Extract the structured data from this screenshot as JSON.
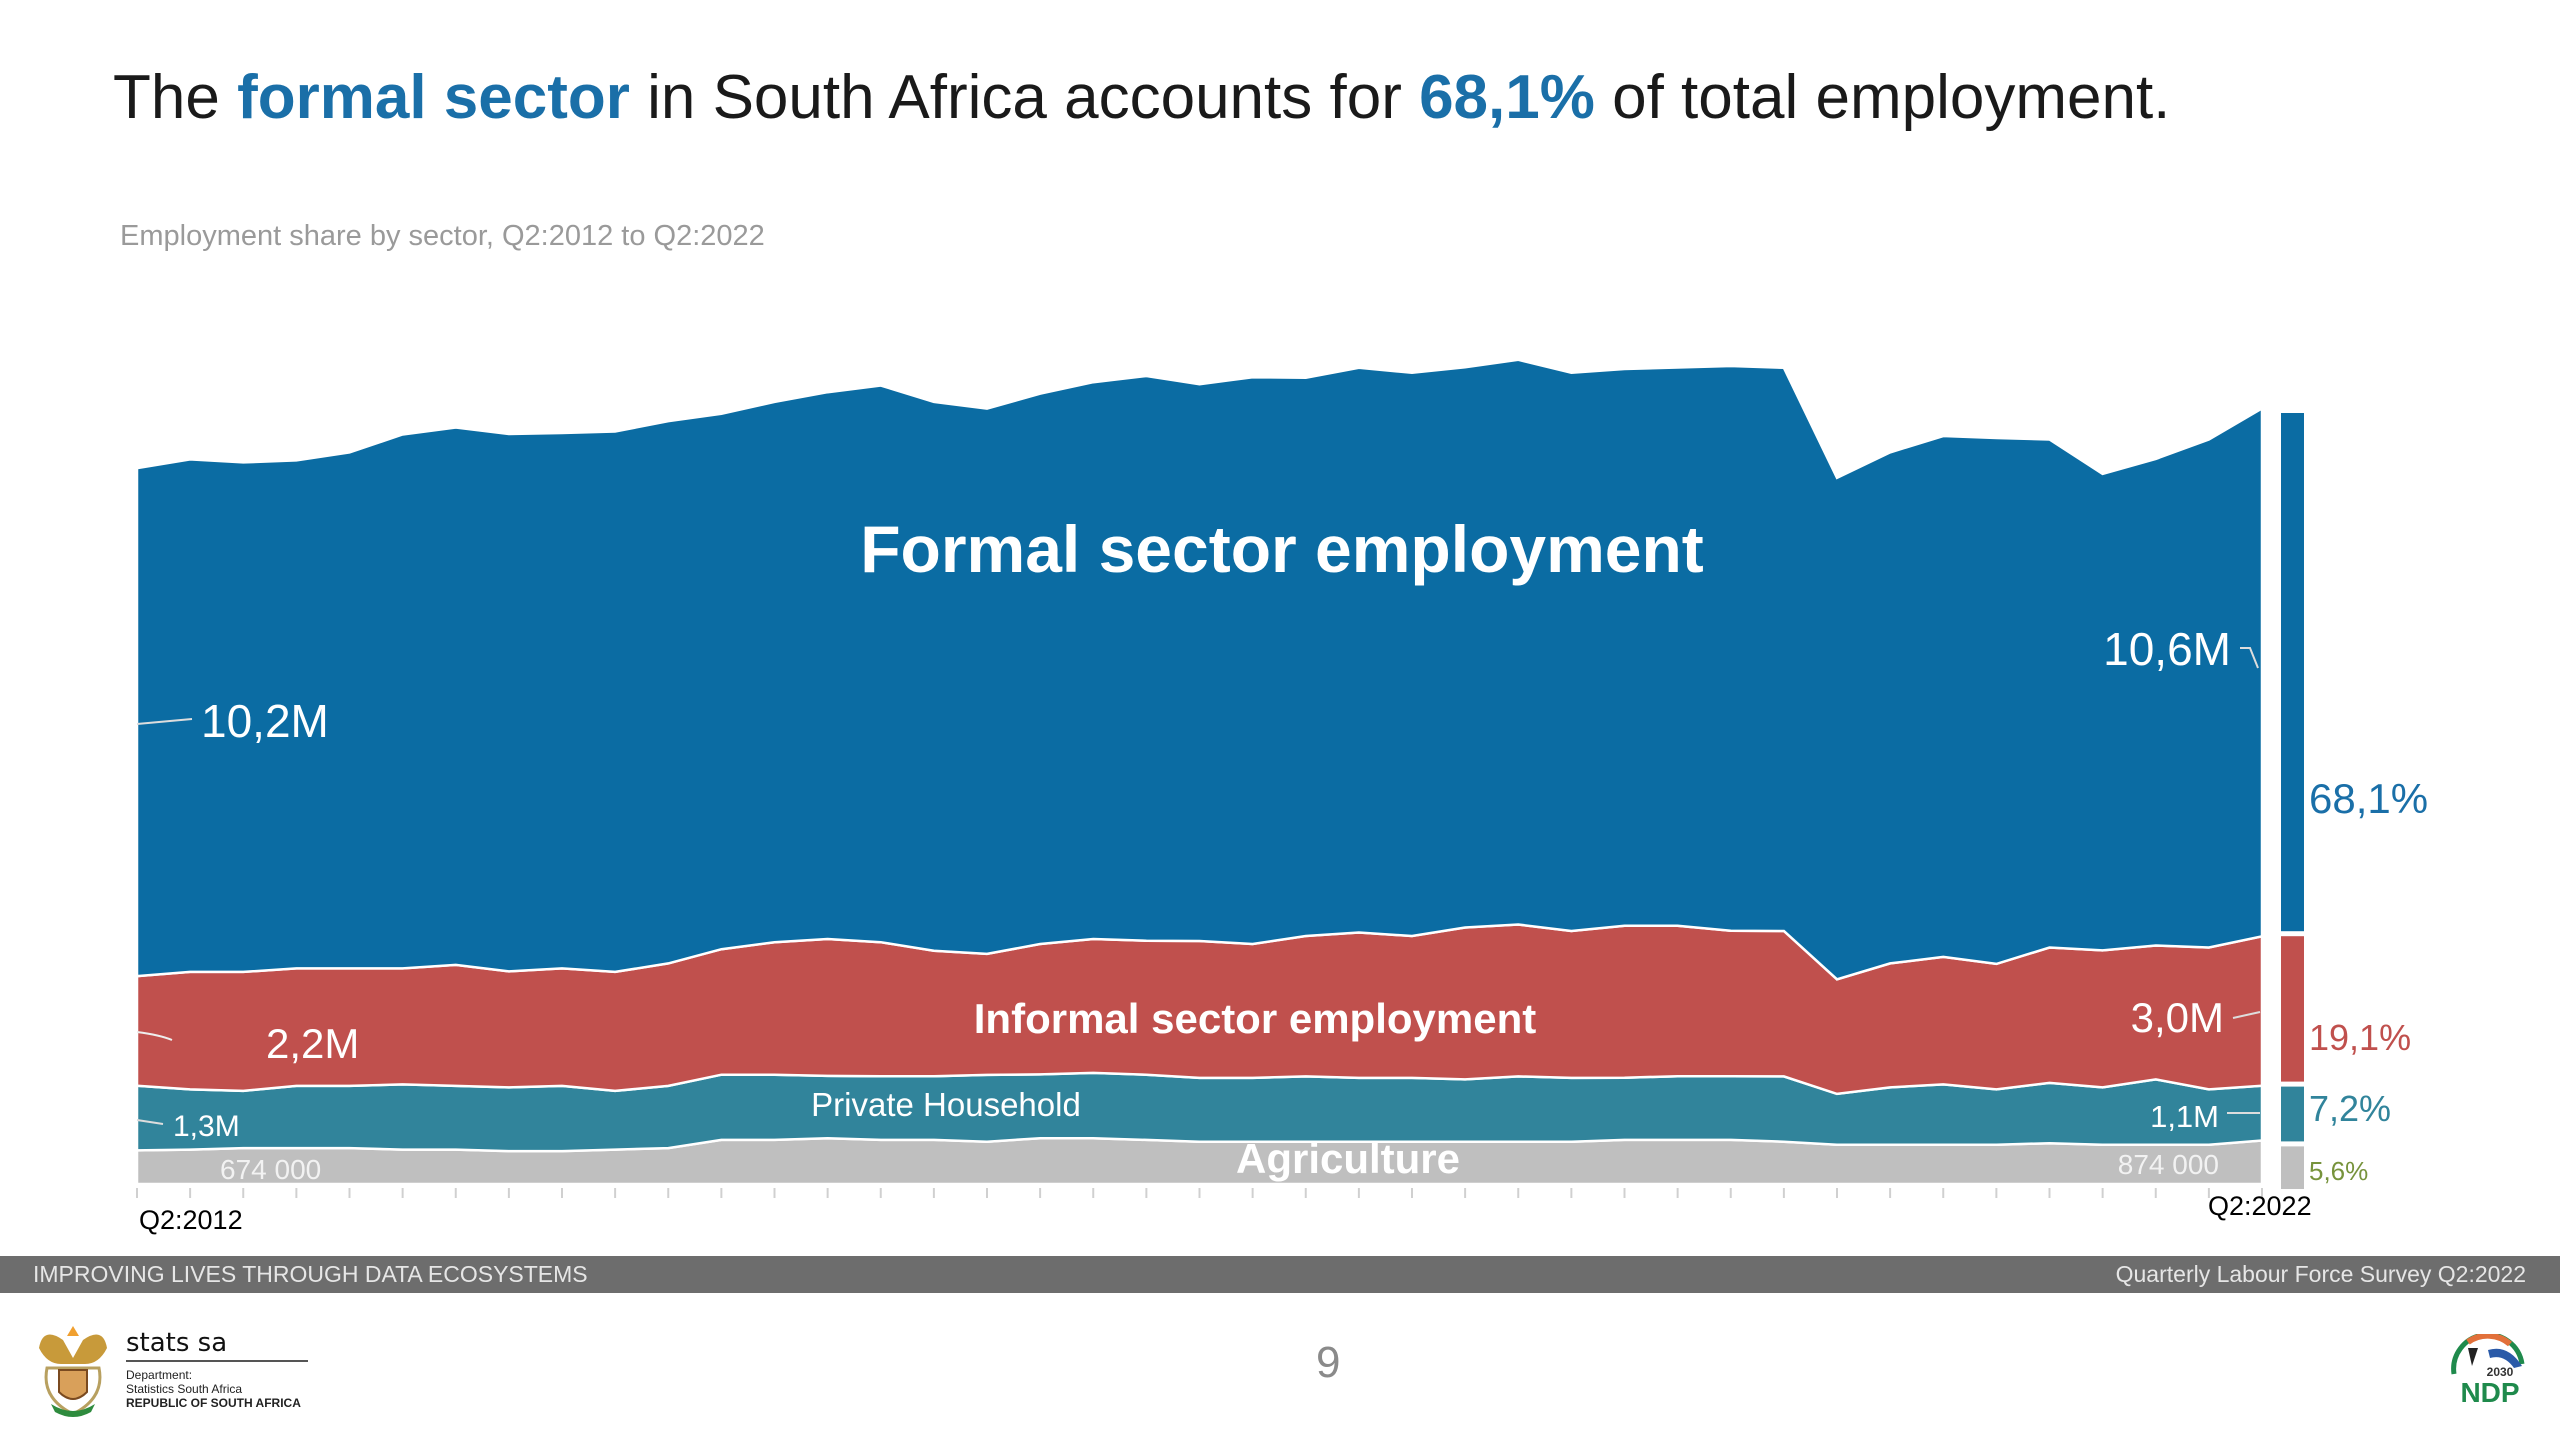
{
  "title": {
    "pre": "The ",
    "hl1": "formal sector",
    "mid": " in South Africa accounts for ",
    "hl2": "68,1%",
    "post": " of total employment."
  },
  "subtitle": "Employment share by sector, Q2:2012 to Q2:2022",
  "chart_data": {
    "type": "area",
    "stacked": true,
    "title": "Employment share by sector, Q2:2012 to Q2:2022",
    "x_start_label": "Q2:2012",
    "x_end_label": "Q2:2022",
    "unit": "thousands",
    "colors": {
      "formal": "#0b6ca3",
      "informal": "#c0504d",
      "household": "#31849b",
      "agriculture": "#bfbfbf"
    },
    "series": [
      {
        "key": "agriculture",
        "name": "Agriculture",
        "values": [
          674,
          690,
          720,
          720,
          720,
          690,
          690,
          660,
          660,
          690,
          720,
          885,
          885,
          920,
          885,
          885,
          850,
          920,
          920,
          885,
          850,
          850,
          850,
          850,
          850,
          850,
          850,
          850,
          885,
          885,
          885,
          850,
          790,
          790,
          790,
          790,
          820,
          790,
          790,
          790,
          874
        ]
      },
      {
        "key": "household",
        "name": "Private Household",
        "values": [
          1300,
          1210,
          1150,
          1250,
          1250,
          1310,
          1280,
          1280,
          1310,
          1180,
          1250,
          1310,
          1310,
          1250,
          1280,
          1280,
          1340,
          1280,
          1310,
          1310,
          1280,
          1280,
          1310,
          1280,
          1280,
          1250,
          1310,
          1280,
          1250,
          1280,
          1280,
          1310,
          1020,
          1150,
          1210,
          1110,
          1210,
          1150,
          1310,
          1110,
          1100
        ]
      },
      {
        "key": "informal",
        "name": "Informal sector employment",
        "values": [
          2200,
          2360,
          2390,
          2360,
          2360,
          2330,
          2430,
          2330,
          2360,
          2390,
          2460,
          2520,
          2660,
          2750,
          2690,
          2520,
          2430,
          2620,
          2690,
          2690,
          2750,
          2690,
          2820,
          2920,
          2850,
          3050,
          3050,
          2950,
          3050,
          3020,
          2920,
          2920,
          2300,
          2490,
          2560,
          2520,
          2720,
          2750,
          2690,
          2850,
          3000
        ]
      },
      {
        "key": "formal",
        "name": "Formal sector employment",
        "values": [
          10200,
          10290,
          10230,
          10200,
          10360,
          10720,
          10790,
          10790,
          10750,
          10850,
          10890,
          10750,
          10850,
          10980,
          11180,
          11020,
          10950,
          11050,
          11180,
          11340,
          11180,
          11380,
          11210,
          11340,
          11310,
          11250,
          11340,
          11210,
          11180,
          11210,
          11340,
          11310,
          10070,
          10260,
          10460,
          10560,
          10200,
          9570,
          9770,
          10200,
          10600
        ]
      }
    ],
    "start_labels": {
      "formal": "10,2M",
      "informal": "2,2M",
      "household": "1,3M",
      "agriculture": "674 000"
    },
    "end_labels": {
      "formal": "10,6M",
      "informal": "3,0M",
      "household": "1,1M",
      "agriculture": "874 000"
    },
    "shares_q2_2022": [
      {
        "key": "formal",
        "label": "68,1%",
        "value": 68.1,
        "color": "#1a6fa8"
      },
      {
        "key": "informal",
        "label": "19,1%",
        "value": 19.1,
        "color": "#c0504d"
      },
      {
        "key": "household",
        "label": "7,2%",
        "value": 7.2,
        "color": "#31849b"
      },
      {
        "key": "agriculture",
        "label": "5,6%",
        "value": 5.6,
        "color": "#77933c"
      }
    ]
  },
  "footer": {
    "left": "IMPROVING LIVES THROUGH DATA ECOSYSTEMS",
    "right": "Quarterly Labour Force Survey Q2:2022"
  },
  "page_number": "9",
  "logo": {
    "name": "stats sa",
    "line1": "Department:",
    "line2": "Statistics South Africa",
    "line3": "REPUBLIC OF SOUTH AFRICA",
    "ndp": "NDP",
    "ndp_year": "2030"
  }
}
